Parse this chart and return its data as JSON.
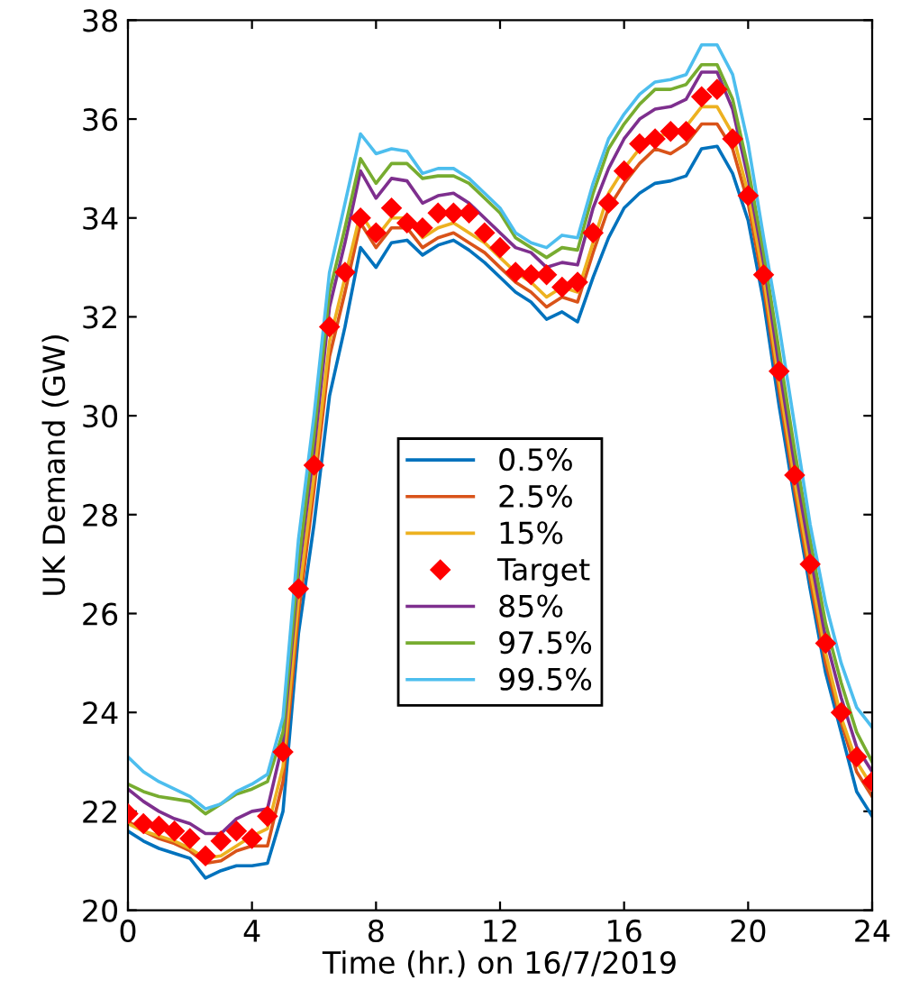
{
  "chart_data": {
    "type": "line",
    "xlabel": "Time (hr.) on 16/7/2019",
    "ylabel": "UK Demand (GW)",
    "x": [
      0,
      0.5,
      1,
      1.5,
      2,
      2.5,
      3,
      3.5,
      4,
      4.5,
      5,
      5.5,
      6,
      6.5,
      7,
      7.5,
      8,
      8.5,
      9,
      9.5,
      10,
      10.5,
      11,
      11.5,
      12,
      12.5,
      13,
      13.5,
      14,
      14.5,
      15,
      15.5,
      16,
      16.5,
      17,
      17.5,
      18,
      18.5,
      19,
      19.5,
      20,
      20.5,
      21,
      21.5,
      22,
      22.5,
      23,
      23.5,
      24
    ],
    "series": [
      {
        "name": "0.5%",
        "color": "#0072bd",
        "values": [
          21.6,
          21.4,
          21.25,
          21.15,
          21.05,
          20.65,
          20.8,
          20.9,
          20.9,
          20.95,
          22.0,
          25.6,
          27.8,
          30.4,
          31.8,
          33.4,
          33.0,
          33.5,
          33.55,
          33.25,
          33.45,
          33.55,
          33.35,
          33.1,
          32.8,
          32.5,
          32.3,
          31.95,
          32.1,
          31.9,
          32.8,
          33.6,
          34.2,
          34.5,
          34.7,
          34.75,
          34.85,
          35.4,
          35.45,
          34.9,
          33.95,
          32.3,
          30.2,
          28.3,
          26.5,
          24.8,
          23.6,
          22.4,
          21.9
        ]
      },
      {
        "name": "2.5%",
        "color": "#d95319",
        "values": [
          21.8,
          21.6,
          21.45,
          21.35,
          21.2,
          20.95,
          21.0,
          21.2,
          21.3,
          21.3,
          22.6,
          26.0,
          28.5,
          31.2,
          32.5,
          33.9,
          33.4,
          33.8,
          33.8,
          33.4,
          33.6,
          33.7,
          33.5,
          33.3,
          33.0,
          32.7,
          32.5,
          32.2,
          32.4,
          32.3,
          33.3,
          34.2,
          34.7,
          35.1,
          35.4,
          35.3,
          35.5,
          35.9,
          35.9,
          35.4,
          34.3,
          32.6,
          30.5,
          28.5,
          26.7,
          25.0,
          23.8,
          22.8,
          22.3
        ]
      },
      {
        "name": "15%",
        "color": "#edb120",
        "values": [
          21.75,
          21.6,
          21.5,
          21.4,
          21.25,
          21.05,
          21.1,
          21.3,
          21.5,
          21.65,
          22.9,
          26.3,
          28.8,
          31.5,
          32.8,
          34.1,
          33.6,
          34.0,
          34.0,
          33.6,
          33.8,
          33.9,
          33.7,
          33.5,
          33.2,
          32.9,
          32.7,
          32.4,
          32.6,
          32.5,
          33.5,
          34.5,
          35.0,
          35.4,
          35.65,
          35.7,
          35.85,
          36.25,
          36.25,
          35.7,
          34.5,
          32.8,
          30.7,
          28.7,
          26.9,
          25.2,
          23.9,
          23.0,
          22.5
        ]
      },
      {
        "name": "Target",
        "type": "scatter",
        "color": "#ff0000",
        "marker": "diamond",
        "values": [
          21.95,
          21.75,
          21.7,
          21.6,
          21.45,
          21.1,
          21.4,
          21.6,
          21.45,
          21.9,
          23.2,
          26.5,
          29.0,
          31.8,
          32.9,
          34.0,
          33.7,
          34.2,
          33.9,
          33.8,
          34.1,
          34.1,
          34.1,
          33.7,
          33.4,
          32.9,
          32.85,
          32.85,
          32.6,
          32.7,
          33.7,
          34.3,
          34.95,
          35.5,
          35.6,
          35.75,
          35.75,
          36.45,
          36.6,
          35.6,
          34.45,
          32.85,
          30.9,
          28.8,
          27.0,
          25.4,
          24.0,
          23.1,
          22.6
        ]
      },
      {
        "name": "85%",
        "color": "#7e2f8e",
        "values": [
          22.45,
          22.2,
          22.0,
          21.85,
          21.75,
          21.55,
          21.55,
          21.85,
          22.0,
          22.05,
          23.4,
          26.8,
          29.3,
          32.2,
          33.5,
          34.95,
          34.4,
          34.8,
          34.75,
          34.3,
          34.45,
          34.5,
          34.3,
          34.0,
          33.7,
          33.4,
          33.3,
          33.0,
          33.1,
          33.05,
          34.2,
          35.0,
          35.6,
          36.0,
          36.2,
          36.25,
          36.4,
          36.95,
          36.95,
          36.2,
          34.8,
          33.1,
          31.0,
          29.0,
          27.2,
          25.5,
          24.3,
          23.3,
          22.8
        ]
      },
      {
        "name": "97.5%",
        "color": "#77ac30",
        "values": [
          22.55,
          22.4,
          22.3,
          22.25,
          22.2,
          21.95,
          22.15,
          22.35,
          22.45,
          22.6,
          23.6,
          27.0,
          29.6,
          32.5,
          33.8,
          35.2,
          34.7,
          35.1,
          35.1,
          34.8,
          34.85,
          34.85,
          34.7,
          34.4,
          34.1,
          33.6,
          33.4,
          33.2,
          33.4,
          33.35,
          34.5,
          35.4,
          35.9,
          36.3,
          36.6,
          36.6,
          36.7,
          37.1,
          37.1,
          36.4,
          35.0,
          33.3,
          31.3,
          29.3,
          27.5,
          25.8,
          24.6,
          23.6,
          23.0
        ]
      },
      {
        "name": "99.5%",
        "color": "#4dbeee",
        "values": [
          23.1,
          22.8,
          22.6,
          22.45,
          22.3,
          22.05,
          22.15,
          22.4,
          22.55,
          22.75,
          23.9,
          27.5,
          30.0,
          32.9,
          34.3,
          35.7,
          35.3,
          35.4,
          35.35,
          34.9,
          35.0,
          35.0,
          34.8,
          34.5,
          34.2,
          33.7,
          33.5,
          33.4,
          33.65,
          33.6,
          34.7,
          35.6,
          36.1,
          36.5,
          36.75,
          36.8,
          36.9,
          37.5,
          37.5,
          36.9,
          35.5,
          33.6,
          31.8,
          29.8,
          27.8,
          26.2,
          25.0,
          24.1,
          23.7
        ]
      }
    ],
    "xlim": [
      0,
      24
    ],
    "xticks": [
      0,
      4,
      8,
      12,
      16,
      20,
      24
    ],
    "ylim": [
      20,
      38
    ],
    "yticks": [
      20,
      22,
      24,
      26,
      28,
      30,
      32,
      34,
      36,
      38
    ],
    "grid": false,
    "legend": "center"
  }
}
